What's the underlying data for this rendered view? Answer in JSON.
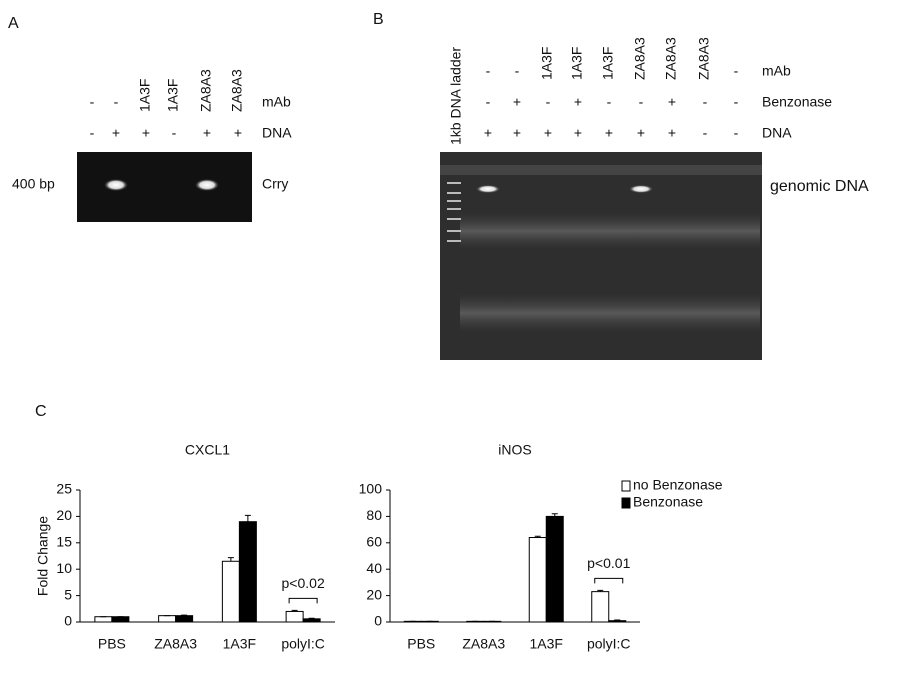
{
  "panel_a": {
    "label": "A",
    "mab": [
      "-",
      "-",
      "1A3F",
      "1A3F",
      "ZA8A3",
      "ZA8A3"
    ],
    "mab_label": "mAb",
    "dna": [
      "-",
      "+",
      "+",
      "-",
      "+",
      "+"
    ],
    "dna_label": "DNA",
    "size_label": "400 bp",
    "band_label": "Crry"
  },
  "panel_b": {
    "label": "B",
    "ladder_label": "1kb DNA ladder",
    "mab": [
      "-",
      "-",
      "1A3F",
      "1A3F",
      "1A3F",
      "ZA8A3",
      "ZA8A3",
      "ZA8A3",
      "-"
    ],
    "mab_label": "mAb",
    "benzonase": [
      "-",
      "+",
      "-",
      "+",
      "-",
      "-",
      "+",
      "-",
      "-"
    ],
    "benzonase_label": "Benzonase",
    "dna": [
      "+",
      "+",
      "+",
      "+",
      "+",
      "+",
      "+",
      "-",
      "-"
    ],
    "dna_label": "DNA",
    "band_label": "genomic DNA"
  },
  "panel_c": {
    "label": "C"
  },
  "chart_data": [
    {
      "type": "bar",
      "title": "CXCL1",
      "ylabel": "Fold Change",
      "categories": [
        "PBS",
        "ZA8A3",
        "1A3F",
        "polyI:C"
      ],
      "series": [
        {
          "color": "#ffffff",
          "values": [
            1,
            1.2,
            11.5,
            2
          ],
          "errors": [
            0,
            0,
            0.7,
            0.2
          ]
        },
        {
          "color": "#000000",
          "values": [
            1,
            1.2,
            19,
            0.6
          ],
          "errors": [
            0,
            0.1,
            1.2,
            0.1
          ]
        }
      ],
      "ylim": [
        0,
        25
      ],
      "yticks": [
        0,
        5,
        10,
        15,
        20,
        25
      ],
      "annotation": "p<0.02"
    },
    {
      "type": "bar",
      "title": "iNOS",
      "categories": [
        "PBS",
        "ZA8A3",
        "1A3F",
        "polyI:C"
      ],
      "series": [
        {
          "name": "no Benzonase",
          "color": "#ffffff",
          "values": [
            0.5,
            0.5,
            64,
            23
          ],
          "errors": [
            0,
            0,
            1,
            1
          ]
        },
        {
          "name": "Benzonase",
          "color": "#000000",
          "values": [
            0.5,
            0.5,
            80,
            1
          ],
          "errors": [
            0,
            0,
            2,
            0.5
          ]
        }
      ],
      "ylim": [
        0,
        100
      ],
      "yticks": [
        0,
        20,
        40,
        60,
        80,
        100
      ],
      "legend": "upper right",
      "annotation": "p<0.01"
    }
  ]
}
